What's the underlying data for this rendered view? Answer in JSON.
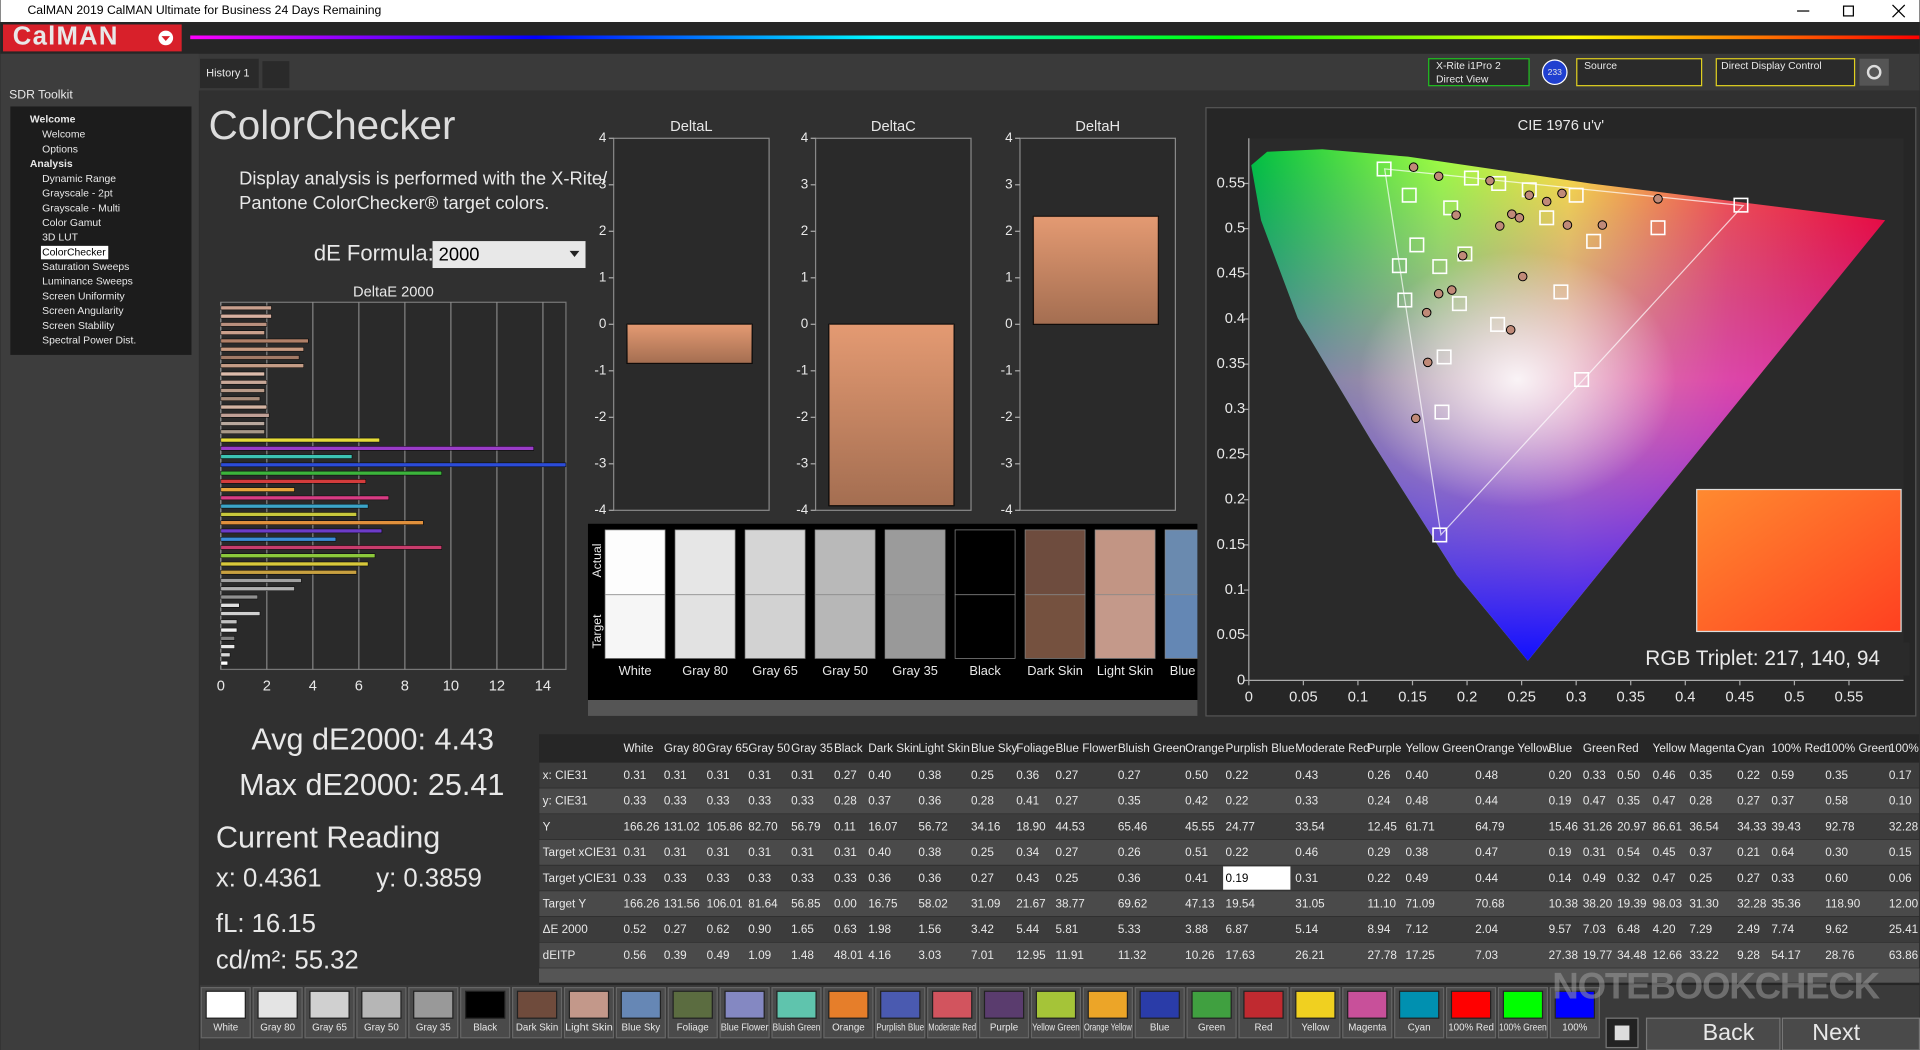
{
  "window": {
    "title": "CalMAN 2019 CalMAN Ultimate for Business 24 Days Remaining",
    "logo": "CalMAN",
    "tab": "History 1",
    "meter": [
      "X-Rite i1Pro 2",
      "Direct View"
    ],
    "badge": "233",
    "source": "Source",
    "display": "Direct Display Control"
  },
  "sidebar": {
    "title": "SDR Toolkit",
    "groups": [
      {
        "label": "Welcome",
        "items": [
          "Welcome",
          "Options"
        ]
      },
      {
        "label": "Analysis",
        "items": [
          "Dynamic Range",
          "Grayscale - 2pt",
          "Grayscale - Multi",
          "Color Gamut",
          "3D LUT",
          "ColorChecker",
          "Saturation Sweeps",
          "Luminance Sweeps",
          "Screen Uniformity",
          "Screen Angularity",
          "Screen Stability",
          "Spectral Power Dist."
        ]
      }
    ],
    "selected": [
      1,
      5
    ]
  },
  "page": {
    "title": "ColorChecker",
    "description": [
      "Display analysis is performed with the X-Rite/",
      "Pantone ColorChecker® target colors."
    ],
    "formula_label": "dE Formula:",
    "formula_value": "2000",
    "avg": "Avg dE2000: 4.43",
    "max": "Max dE2000: 25.41",
    "reading_title": "Current Reading",
    "reading_x": "x: 0.4361",
    "reading_y": "y: 0.3859",
    "fl": "fL: 16.15",
    "cdm2": "cd/m²: 55.32"
  },
  "deltas": [
    {
      "type": "bar",
      "title": "DeltaL",
      "values": [
        -0.84
      ],
      "color": "#e0956c",
      "ylim": [
        -4,
        4
      ],
      "yticks": [
        -4,
        -3,
        -2,
        -1,
        0,
        1,
        2,
        3,
        4
      ]
    },
    {
      "type": "bar",
      "title": "DeltaC",
      "values": [
        -3.9
      ],
      "color": "#e0956c",
      "ylim": [
        -4,
        4
      ],
      "yticks": [
        -4,
        -3,
        -2,
        -1,
        0,
        1,
        2,
        3,
        4
      ]
    },
    {
      "type": "bar",
      "title": "DeltaH",
      "values": [
        2.32
      ],
      "color": "#e0956c",
      "ylim": [
        -4,
        4
      ],
      "yticks": [
        -4,
        -3,
        -2,
        -1,
        0,
        1,
        2,
        3,
        4
      ]
    }
  ],
  "deltae": {
    "type": "hbar",
    "title": "DeltaE 2000",
    "xlim": [
      0,
      15
    ],
    "xticks": [
      0,
      2,
      4,
      6,
      8,
      10,
      12,
      14
    ],
    "grid": true,
    "values": [
      2.2,
      2.2,
      2.0,
      1.9,
      3.8,
      3.6,
      3.4,
      3.6,
      1.9,
      2.0,
      1.9,
      1.7,
      2.0,
      2.1,
      1.9,
      1.9,
      6.9,
      13.6,
      5.7,
      15.0,
      9.6,
      6.3,
      3.2,
      7.3,
      6.4,
      5.9,
      8.8,
      7.0,
      5.0,
      9.6,
      6.7,
      6.4,
      5.9,
      3.5,
      3.2,
      1.6,
      0.8,
      1.7,
      0.7,
      0.7,
      0.6,
      0.6,
      0.4,
      0.3
    ],
    "colors": [
      "#c9a08e",
      "#d8b0a0",
      "#b9907e",
      "#caa08c",
      "#b08068",
      "#c89a80",
      "#a27a66",
      "#c49c86",
      "#dcbcac",
      "#c8a898",
      "#b89a88",
      "#a88c7a",
      "#d4b4a2",
      "#c0a096",
      "#b8a89e",
      "#a89888",
      "#e6dc3a",
      "#9a3cc8",
      "#3cc4b4",
      "#2c4cd8",
      "#3cb43c",
      "#d43c3c",
      "#e8a43c",
      "#d83c84",
      "#3ca4c8",
      "#c8c83c",
      "#e0903c",
      "#6c3cc8",
      "#3c8cd8",
      "#c83c6c",
      "#8cc83c",
      "#d8c83c",
      "#c8a040",
      "#a0a0a0",
      "#b0b0b0",
      "#909090",
      "#e0e0e0",
      "#d0d0d0",
      "#c0c0c0",
      "#f0f0f0",
      "#808080",
      "#e8e8e8",
      "#d8d8d8",
      "#ffffff"
    ]
  },
  "patches": {
    "actual_label": "Actual",
    "target_label": "Target",
    "actual_colors": [
      "#fdfdfd",
      "#e6e6e6",
      "#d5d5d5",
      "#b9b9b9",
      "#9b9b9b",
      "#000000",
      "#6e4c3e",
      "#c29584",
      "#6a8aaf"
    ],
    "target_colors": [
      "#f6f6f6",
      "#e2e2e2",
      "#d2d2d2",
      "#b7b7b7",
      "#999999",
      "#000000",
      "#75513f",
      "#c4998a",
      "#6487b4"
    ]
  },
  "cie": {
    "type": "scatter",
    "title": "CIE 1976 u'v'",
    "xlim": [
      0,
      0.6
    ],
    "ylim": [
      0,
      0.6
    ],
    "xticks": [
      0,
      0.05,
      0.1,
      0.15,
      0.2,
      0.25,
      0.3,
      0.35,
      0.4,
      0.45,
      0.5,
      0.55
    ],
    "yticks": [
      0,
      0.05,
      0.1,
      0.15,
      0.2,
      0.25,
      0.3,
      0.35,
      0.4,
      0.45,
      0.5,
      0.55
    ],
    "series": [
      {
        "marker": "square",
        "color": "#ffffff",
        "x": [
          0.124,
          0.147,
          0.204,
          0.229,
          0.257,
          0.3,
          0.375,
          0.451,
          0.316,
          0.286,
          0.228,
          0.305,
          0.179,
          0.177,
          0.175,
          0.138,
          0.154,
          0.175,
          0.193,
          0.143,
          0.198,
          0.185,
          0.273
        ],
        "y": [
          0.566,
          0.537,
          0.556,
          0.55,
          0.543,
          0.537,
          0.501,
          0.526,
          0.486,
          0.43,
          0.394,
          0.333,
          0.358,
          0.297,
          0.161,
          0.459,
          0.482,
          0.458,
          0.417,
          0.421,
          0.472,
          0.523,
          0.512
        ]
      },
      {
        "marker": "circle",
        "color": "#c08a78",
        "x": [
          0.151,
          0.174,
          0.19,
          0.221,
          0.241,
          0.257,
          0.273,
          0.287,
          0.375,
          0.324,
          0.292,
          0.251,
          0.24,
          0.164,
          0.163,
          0.174,
          0.186,
          0.153,
          0.196,
          0.23,
          0.248
        ],
        "y": [
          0.568,
          0.558,
          0.515,
          0.553,
          0.516,
          0.537,
          0.53,
          0.539,
          0.533,
          0.504,
          0.504,
          0.447,
          0.388,
          0.352,
          0.407,
          0.428,
          0.432,
          0.29,
          0.47,
          0.503,
          0.512
        ]
      }
    ],
    "annotation": "RGB Triplet: 217, 140, 94"
  },
  "table": {
    "columns": [
      "White",
      "Gray 80",
      "Gray 65",
      "Gray 50",
      "Gray 35",
      "Black",
      "Dark Skin",
      "Light Skin",
      "Blue Sky",
      "Foliage",
      "Blue Flower",
      "Bluish Green",
      "Orange",
      "Purplish Blue",
      "Moderate Red",
      "Purple",
      "Yellow Green",
      "Orange Yellow",
      "Blue",
      "Green",
      "Red",
      "Yellow",
      "Magenta",
      "Cyan",
      "100% Red",
      "100% Green",
      "100%"
    ],
    "rows": [
      {
        "label": "x: CIE31",
        "cells": [
          "0.31",
          "0.31",
          "0.31",
          "0.31",
          "0.31",
          "0.27",
          "0.40",
          "0.38",
          "0.25",
          "0.36",
          "0.27",
          "0.27",
          "0.50",
          "0.22",
          "0.43",
          "0.26",
          "0.40",
          "0.48",
          "0.20",
          "0.33",
          "0.50",
          "0.46",
          "0.35",
          "0.22",
          "0.59",
          "0.35",
          "0.17"
        ]
      },
      {
        "label": "y: CIE31",
        "cells": [
          "0.33",
          "0.33",
          "0.33",
          "0.33",
          "0.33",
          "0.28",
          "0.37",
          "0.36",
          "0.28",
          "0.41",
          "0.27",
          "0.35",
          "0.42",
          "0.22",
          "0.33",
          "0.24",
          "0.48",
          "0.44",
          "0.19",
          "0.47",
          "0.35",
          "0.47",
          "0.28",
          "0.27",
          "0.37",
          "0.58",
          "0.10"
        ]
      },
      {
        "label": "Y",
        "cells": [
          "166.26",
          "131.02",
          "105.86",
          "82.70",
          "56.79",
          "0.11",
          "16.07",
          "56.72",
          "34.16",
          "18.90",
          "44.53",
          "65.46",
          "45.55",
          "24.77",
          "33.54",
          "12.45",
          "61.71",
          "64.79",
          "15.46",
          "31.26",
          "20.97",
          "86.61",
          "36.54",
          "34.33",
          "39.43",
          "92.78",
          "32.28"
        ]
      },
      {
        "label": "Target xCIE31",
        "cells": [
          "0.31",
          "0.31",
          "0.31",
          "0.31",
          "0.31",
          "0.31",
          "0.40",
          "0.38",
          "0.25",
          "0.34",
          "0.27",
          "0.26",
          "0.51",
          "0.22",
          "0.46",
          "0.29",
          "0.38",
          "0.47",
          "0.19",
          "0.31",
          "0.54",
          "0.45",
          "0.37",
          "0.21",
          "0.64",
          "0.30",
          "0.15"
        ]
      },
      {
        "label": "Target yCIE31",
        "cells": [
          "0.33",
          "0.33",
          "0.33",
          "0.33",
          "0.33",
          "0.33",
          "0.36",
          "0.36",
          "0.27",
          "0.43",
          "0.25",
          "0.36",
          "0.41",
          "0.19",
          "0.31",
          "0.22",
          "0.49",
          "0.44",
          "0.14",
          "0.49",
          "0.32",
          "0.47",
          "0.25",
          "0.27",
          "0.33",
          "0.60",
          "0.06"
        ]
      },
      {
        "label": "Target Y",
        "cells": [
          "166.26",
          "131.56",
          "106.01",
          "81.64",
          "56.85",
          "0.00",
          "16.75",
          "58.02",
          "31.09",
          "21.67",
          "38.77",
          "69.62",
          "47.13",
          "19.54",
          "31.05",
          "11.10",
          "71.09",
          "70.68",
          "10.38",
          "38.20",
          "19.39",
          "98.03",
          "31.30",
          "32.28",
          "35.36",
          "118.90",
          "12.00"
        ]
      },
      {
        "label": "ΔE 2000",
        "cells": [
          "0.52",
          "0.27",
          "0.62",
          "0.90",
          "1.65",
          "0.63",
          "1.98",
          "1.56",
          "3.42",
          "5.44",
          "5.81",
          "5.33",
          "3.88",
          "6.87",
          "5.14",
          "8.94",
          "7.12",
          "2.04",
          "9.57",
          "7.03",
          "6.48",
          "4.20",
          "7.29",
          "2.49",
          "7.74",
          "9.62",
          "25.41"
        ]
      },
      {
        "label": "dEITP",
        "cells": [
          "0.56",
          "0.39",
          "0.49",
          "1.09",
          "1.48",
          "48.01",
          "4.16",
          "3.03",
          "7.01",
          "12.95",
          "11.91",
          "11.32",
          "10.26",
          "17.63",
          "26.21",
          "27.78",
          "17.25",
          "7.03",
          "27.38",
          "19.77",
          "34.48",
          "12.66",
          "33.22",
          "9.28",
          "54.17",
          "28.76",
          "63.86"
        ]
      }
    ],
    "selected_cell": [
      4,
      13
    ]
  },
  "swatch_colors": [
    "#ffffff",
    "#e4e4e4",
    "#d0d0d0",
    "#b6b6b6",
    "#999999",
    "#000000",
    "#6f4b3c",
    "#c3988a",
    "#6687b5",
    "#5b6c40",
    "#8488c2",
    "#5fc4ad",
    "#e67e2a",
    "#4a5ab0",
    "#d2545e",
    "#5a3c6e",
    "#a5c438",
    "#eca528",
    "#2a3ca8",
    "#40a040",
    "#c02a30",
    "#f0d020",
    "#c8509a",
    "#0090b0",
    "#ff0000",
    "#00ff00",
    "#0000ff"
  ],
  "nav": {
    "back": "Back",
    "next": "Next"
  },
  "watermark": "NOTEBOOKCHECK"
}
